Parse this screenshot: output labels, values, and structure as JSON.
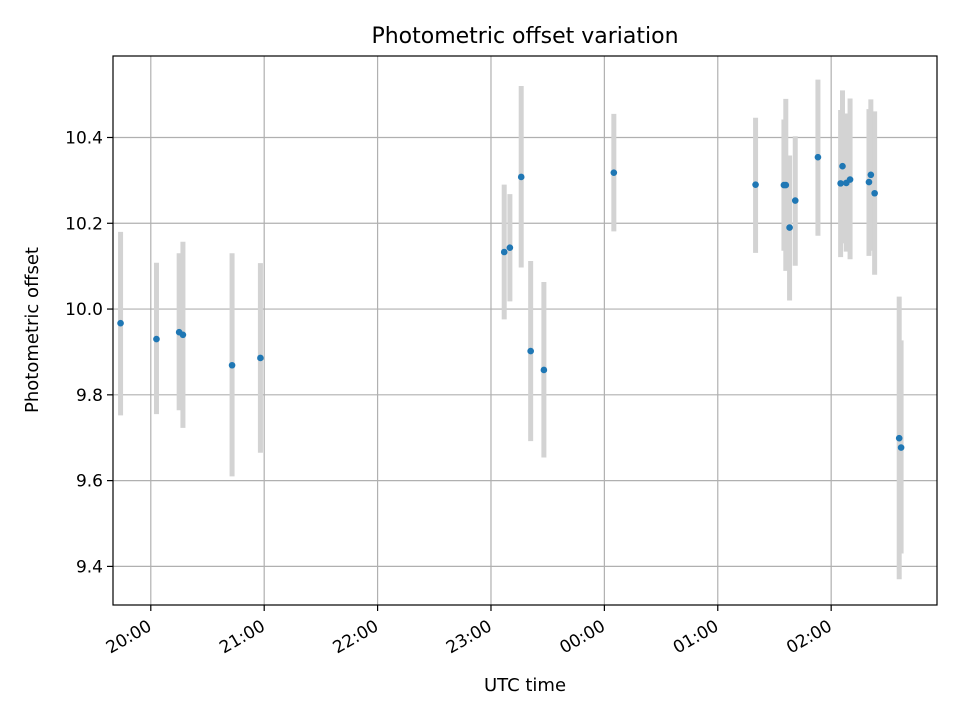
{
  "chart_data": {
    "type": "scatter",
    "title": "Photometric offset variation",
    "xlabel": "UTC time",
    "ylabel": "Photometric offset",
    "x_axis": "time (UTC)",
    "xlim": [
      "19:40",
      "02:56"
    ],
    "ylim": [
      9.31,
      10.59
    ],
    "x_ticks": [
      "20:00",
      "21:00",
      "22:00",
      "23:00",
      "00:00",
      "01:00",
      "02:00"
    ],
    "y_ticks": [
      9.4,
      9.6,
      9.8,
      10.0,
      10.2,
      10.4
    ],
    "y_tick_labels": [
      "9.4",
      "9.6",
      "9.8",
      "10.0",
      "10.2",
      "10.4"
    ],
    "grid": true,
    "marker_color": "#1f77b4",
    "errorbar_color": "#d3d3d3",
    "points": [
      {
        "t": "19:44",
        "y": 9.967,
        "lo": 9.752,
        "hi": 10.18
      },
      {
        "t": "20:03",
        "y": 9.93,
        "lo": 9.755,
        "hi": 10.108
      },
      {
        "t": "20:15",
        "y": 9.946,
        "lo": 9.764,
        "hi": 10.13
      },
      {
        "t": "20:17",
        "y": 9.94,
        "lo": 9.723,
        "hi": 10.157
      },
      {
        "t": "20:43",
        "y": 9.869,
        "lo": 9.61,
        "hi": 10.13
      },
      {
        "t": "20:58",
        "y": 9.886,
        "lo": 9.665,
        "hi": 10.107
      },
      {
        "t": "23:07",
        "y": 10.133,
        "lo": 9.976,
        "hi": 10.29
      },
      {
        "t": "23:10",
        "y": 10.143,
        "lo": 10.018,
        "hi": 10.268
      },
      {
        "t": "23:16",
        "y": 10.308,
        "lo": 10.097,
        "hi": 10.52
      },
      {
        "t": "23:21",
        "y": 9.902,
        "lo": 9.692,
        "hi": 10.112
      },
      {
        "t": "23:28",
        "y": 9.858,
        "lo": 9.654,
        "hi": 10.063
      },
      {
        "t": "00:05",
        "y": 10.318,
        "lo": 10.181,
        "hi": 10.455
      },
      {
        "t": "01:20",
        "y": 10.29,
        "lo": 10.131,
        "hi": 10.446
      },
      {
        "t": "01:35",
        "y": 10.289,
        "lo": 10.136,
        "hi": 10.442
      },
      {
        "t": "01:36",
        "y": 10.289,
        "lo": 10.089,
        "hi": 10.49
      },
      {
        "t": "01:38",
        "y": 10.19,
        "lo": 10.02,
        "hi": 10.358
      },
      {
        "t": "01:41",
        "y": 10.253,
        "lo": 10.101,
        "hi": 10.403
      },
      {
        "t": "01:53",
        "y": 10.354,
        "lo": 10.171,
        "hi": 10.535
      },
      {
        "t": "02:05",
        "y": 10.293,
        "lo": 10.121,
        "hi": 10.464
      },
      {
        "t": "02:06",
        "y": 10.333,
        "lo": 10.153,
        "hi": 10.51
      },
      {
        "t": "02:08",
        "y": 10.294,
        "lo": 10.134,
        "hi": 10.456
      },
      {
        "t": "02:10",
        "y": 10.302,
        "lo": 10.116,
        "hi": 10.491
      },
      {
        "t": "02:20",
        "y": 10.296,
        "lo": 10.124,
        "hi": 10.466
      },
      {
        "t": "02:21",
        "y": 10.313,
        "lo": 10.136,
        "hi": 10.489
      },
      {
        "t": "02:23",
        "y": 10.27,
        "lo": 10.08,
        "hi": 10.461
      },
      {
        "t": "02:36",
        "y": 9.699,
        "lo": 9.37,
        "hi": 10.029
      },
      {
        "t": "02:37",
        "y": 9.677,
        "lo": 9.43,
        "hi": 9.927
      }
    ]
  }
}
